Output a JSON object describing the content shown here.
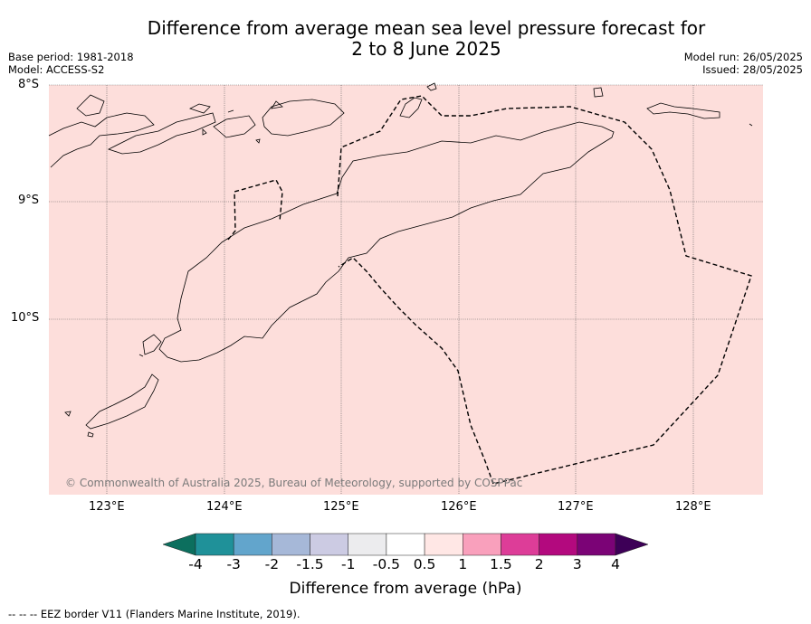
{
  "title_line1": "Difference from average mean sea level pressure forecast for",
  "title_line2": "2 to 8 June 2025",
  "meta_left": [
    "Base period: 1981-2018",
    "Model: ACCESS-S2"
  ],
  "meta_right": [
    "Model run: 26/05/2025",
    "Issued: 28/05/2025"
  ],
  "lat_labels": [
    "8°S",
    "9°S",
    "10°S"
  ],
  "lon_labels": [
    "123°E",
    "124°E",
    "125°E",
    "126°E",
    "127°E",
    "128°E"
  ],
  "copyright": "© Commonwealth of Australia 2025, Bureau of Meteorology, supported by COSPPac",
  "colorbar": {
    "title": "Difference from average (hPa)",
    "ticks": [
      "-4",
      "-3",
      "-2",
      "-1.5",
      "-1",
      "-0.5",
      "0.5",
      "1",
      "1.5",
      "2",
      "3",
      "4"
    ],
    "colors": [
      "#0c6f5e",
      "#1f9199",
      "#62a5cc",
      "#a6b8d8",
      "#cccbe3",
      "#ececee",
      "#ffffff",
      "#ffe7e5",
      "#f9a0bc",
      "#dd3d98",
      "#b3097e",
      "#7b0376",
      "#3d0057"
    ]
  },
  "map_fill_color": "#fddedb",
  "footer": "--  --  -- EEZ border V11 (Flanders Marine Institute, 2019)."
}
